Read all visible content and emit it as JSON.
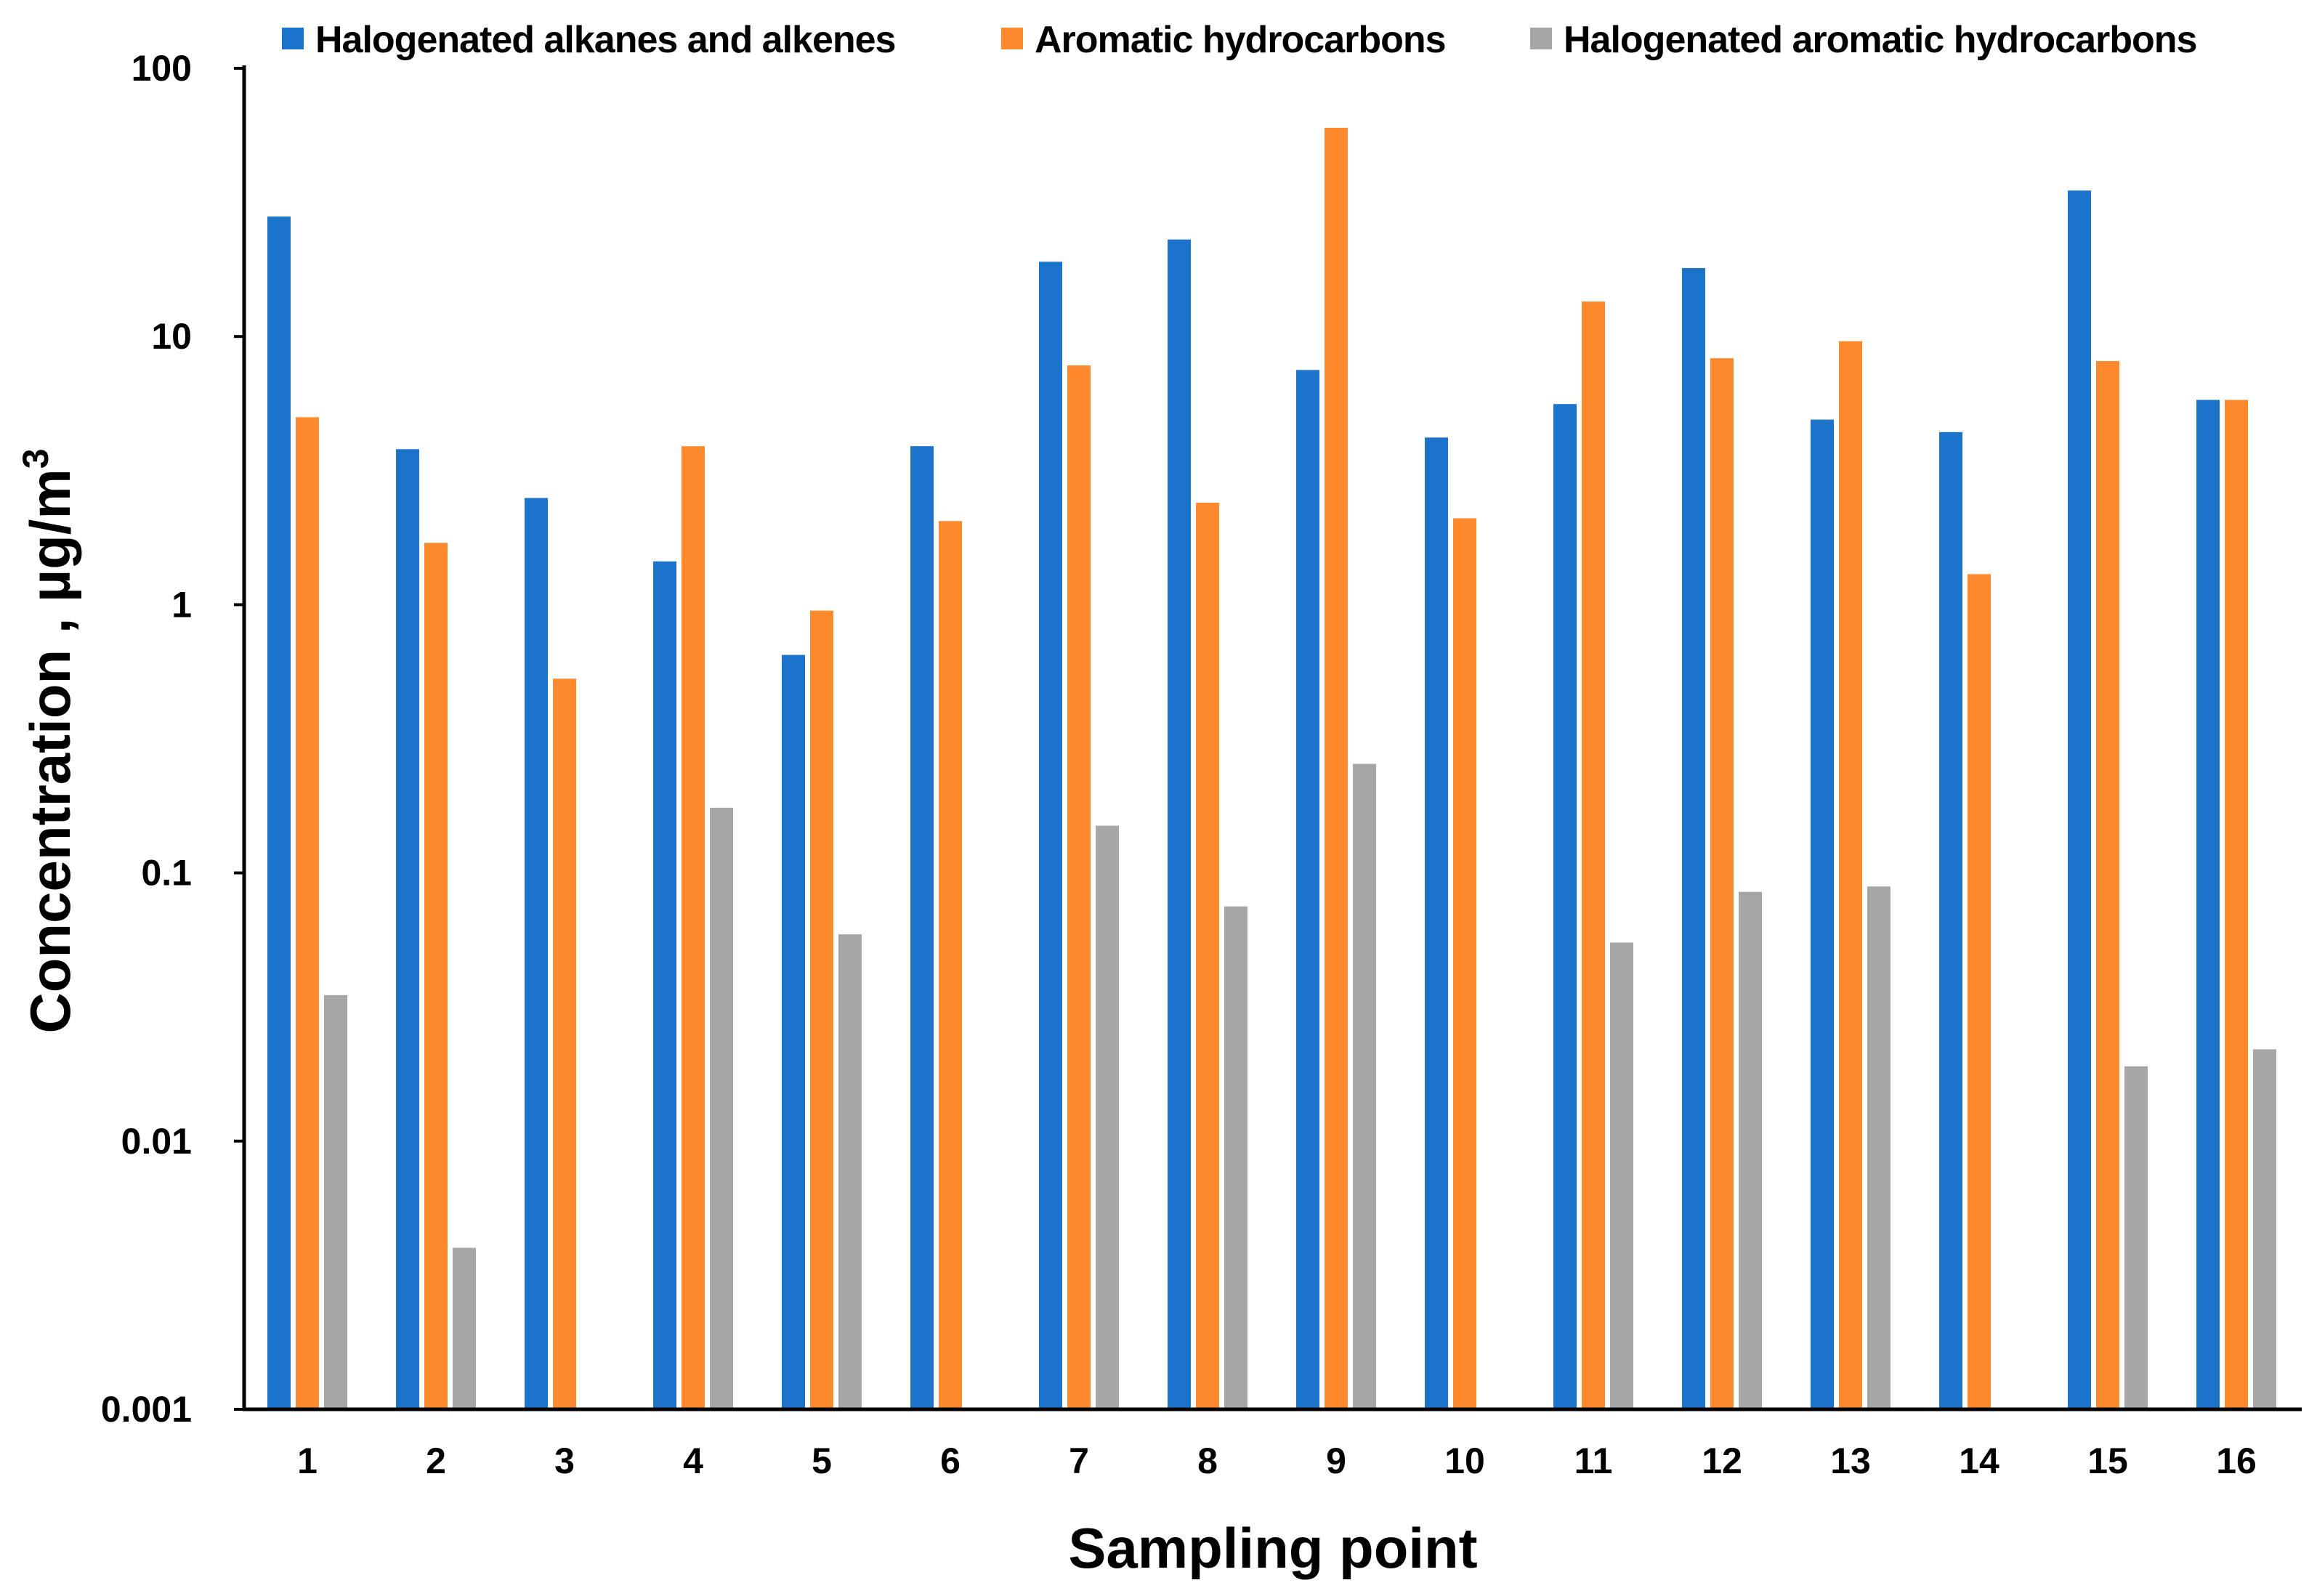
{
  "chart_data": {
    "type": "bar",
    "scale": "log",
    "title": "",
    "xlabel": "Sampling point",
    "ylabel_main": "Concentration , µg/m",
    "ylabel_sup": "3",
    "ylim": [
      0.001,
      100
    ],
    "yticks": [
      {
        "value": 100,
        "label": "100"
      },
      {
        "value": 10,
        "label": "10"
      },
      {
        "value": 1,
        "label": "1"
      },
      {
        "value": 0.1,
        "label": "0.1"
      },
      {
        "value": 0.01,
        "label": "0.01"
      },
      {
        "value": 0.001,
        "label": "0.001"
      }
    ],
    "categories": [
      "1",
      "2",
      "3",
      "4",
      "5",
      "6",
      "7",
      "8",
      "9",
      "10",
      "11",
      "12",
      "13",
      "14",
      "15",
      "16"
    ],
    "legend_position": "top",
    "series": [
      {
        "name": "Halogenated alkanes and alkenes",
        "color": "#1B74CA",
        "values": [
          28,
          3.8,
          2.5,
          1.45,
          0.65,
          3.9,
          19,
          23,
          7.5,
          4.2,
          5.6,
          18,
          4.9,
          4.4,
          35,
          5.8
        ]
      },
      {
        "name": "Aromatic hydrocarbons",
        "color": "#FF8A2E",
        "values": [
          5.0,
          1.7,
          0.53,
          3.9,
          0.95,
          2.05,
          7.8,
          2.4,
          60,
          2.1,
          13.5,
          8.3,
          9.6,
          1.3,
          8.1,
          5.8
        ]
      },
      {
        "name": "Halogenated aromatic hydrocarbons",
        "color": "#A6A6A6",
        "values": [
          0.035,
          0.004,
          null,
          0.175,
          0.059,
          null,
          0.15,
          0.075,
          0.255,
          null,
          0.055,
          0.085,
          0.089,
          null,
          0.019,
          0.022
        ]
      }
    ]
  }
}
